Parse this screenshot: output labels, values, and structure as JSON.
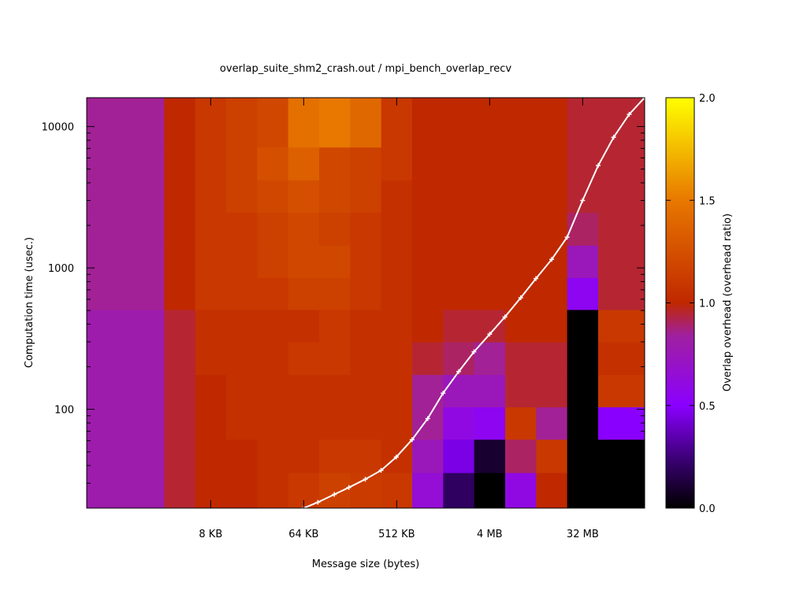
{
  "chart_data": {
    "type": "heatmap",
    "title": "overlap_suite_shm2_crash.out / mpi_bench_overlap_recv",
    "xlabel": "Message size (bytes)",
    "ylabel": "Computation time (usec.)",
    "x_scale": "log2",
    "y_scale": "log10",
    "xlim_bytes": [
      512,
      134217728
    ],
    "ylim_usec": [
      20,
      16000
    ],
    "x_ticks": [
      {
        "value": 8192,
        "label": "8 KB"
      },
      {
        "value": 65536,
        "label": "64 KB"
      },
      {
        "value": 524288,
        "label": "512 KB"
      },
      {
        "value": 4194304,
        "label": "4 MB"
      },
      {
        "value": 33554432,
        "label": "32 MB"
      }
    ],
    "y_ticks": [
      {
        "value": 100,
        "label": "100"
      },
      {
        "value": 1000,
        "label": "1000"
      },
      {
        "value": 10000,
        "label": "10000"
      }
    ],
    "colorbar": {
      "label": "Overlap overhead (overhead ratio)",
      "range": [
        0,
        2
      ],
      "ticks": [
        {
          "value": 0,
          "label": "0.0"
        },
        {
          "value": 0.5,
          "label": "0.5"
        },
        {
          "value": 1,
          "label": "1.0"
        },
        {
          "value": 1.5,
          "label": "1.5"
        },
        {
          "value": 2,
          "label": "2.0"
        }
      ],
      "palette": [
        "#000000",
        "#300060",
        "#8a00ff",
        "#a020a0",
        "#c02800",
        "#e87800",
        "#ffff00"
      ]
    },
    "heatmap_x_bytes": [
      2048,
      4096,
      8192,
      16384,
      32768,
      65536,
      131072,
      262144,
      524288,
      1048576,
      2097152,
      4194304,
      8388608,
      16777216,
      33554432,
      67108864
    ],
    "heatmap_y_usec": [
      27,
      47,
      80,
      135,
      230,
      390,
      660,
      1100,
      1900,
      3200,
      5500,
      9300
    ],
    "heatmap_values": [
      [
        0.8,
        0.95,
        1.0,
        1.0,
        1.05,
        1.1,
        1.15,
        1.12,
        1.1,
        0.65,
        0.2,
        0.0,
        0.6,
        1.0,
        0.0,
        0.0
      ],
      [
        0.8,
        0.95,
        1.0,
        1.0,
        1.05,
        1.05,
        1.1,
        1.1,
        1.05,
        0.75,
        0.45,
        0.1,
        0.9,
        1.1,
        0.0,
        0.0
      ],
      [
        0.8,
        0.95,
        1.0,
        1.05,
        1.05,
        1.05,
        1.05,
        1.05,
        1.05,
        0.85,
        0.6,
        0.55,
        1.1,
        0.85,
        0.0,
        0.5
      ],
      [
        0.8,
        0.95,
        1.0,
        1.05,
        1.05,
        1.05,
        1.05,
        1.05,
        1.05,
        0.85,
        0.75,
        0.75,
        0.95,
        0.95,
        0.0,
        1.1
      ],
      [
        0.8,
        0.95,
        1.05,
        1.05,
        1.05,
        1.1,
        1.1,
        1.05,
        1.05,
        0.95,
        0.9,
        0.85,
        0.95,
        0.95,
        0.0,
        1.05
      ],
      [
        0.8,
        0.95,
        1.05,
        1.05,
        1.05,
        1.05,
        1.1,
        1.05,
        1.05,
        1.0,
        0.95,
        0.95,
        1.0,
        1.0,
        0.0,
        1.1
      ],
      [
        0.85,
        1.0,
        1.1,
        1.1,
        1.1,
        1.15,
        1.15,
        1.1,
        1.05,
        1.0,
        1.0,
        1.0,
        1.0,
        1.0,
        0.55,
        0.95
      ],
      [
        0.85,
        1.0,
        1.1,
        1.1,
        1.15,
        1.2,
        1.2,
        1.1,
        1.05,
        1.0,
        1.0,
        1.0,
        1.0,
        1.0,
        0.75,
        0.95
      ],
      [
        0.85,
        1.0,
        1.1,
        1.1,
        1.15,
        1.2,
        1.15,
        1.1,
        1.05,
        1.0,
        1.0,
        1.0,
        1.0,
        1.0,
        0.9,
        0.95
      ],
      [
        0.85,
        1.0,
        1.1,
        1.15,
        1.2,
        1.25,
        1.2,
        1.15,
        1.05,
        1.0,
        1.0,
        1.0,
        1.0,
        1.0,
        0.95,
        0.95
      ],
      [
        0.85,
        1.0,
        1.1,
        1.15,
        1.25,
        1.35,
        1.2,
        1.15,
        1.1,
        1.0,
        1.0,
        1.0,
        1.0,
        1.0,
        0.95,
        0.95
      ],
      [
        0.85,
        1.0,
        1.1,
        1.15,
        1.2,
        1.45,
        1.5,
        1.4,
        1.1,
        1.0,
        1.0,
        1.0,
        1.0,
        1.0,
        0.95,
        0.95
      ]
    ],
    "line_series": {
      "color": "#ffffff",
      "points": [
        [
          65536,
          20
        ],
        [
          90000,
          22
        ],
        [
          130000,
          25
        ],
        [
          180000,
          28
        ],
        [
          260000,
          32
        ],
        [
          370000,
          37
        ],
        [
          520000,
          46
        ],
        [
          740000,
          61
        ],
        [
          1050000,
          86
        ],
        [
          1480000,
          130
        ],
        [
          2100000,
          185
        ],
        [
          2950000,
          255
        ],
        [
          4200000,
          340
        ],
        [
          5900000,
          450
        ],
        [
          8400000,
          615
        ],
        [
          11800000,
          840
        ],
        [
          16800000,
          1150
        ],
        [
          23700000,
          1650
        ],
        [
          33500000,
          3000
        ],
        [
          47500000,
          5300
        ],
        [
          67100000,
          8400
        ],
        [
          95000000,
          12200
        ],
        [
          134000000,
          16000
        ]
      ]
    }
  }
}
